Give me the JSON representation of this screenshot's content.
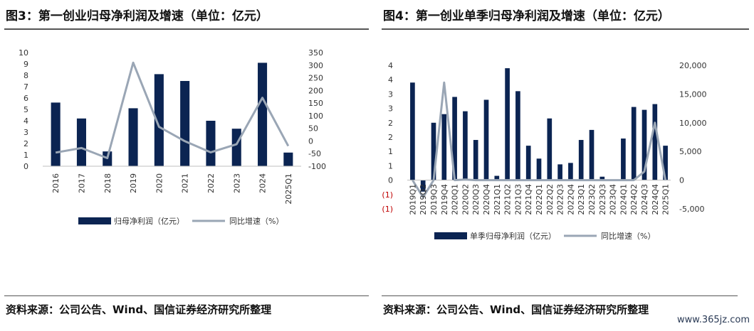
{
  "colors": {
    "bar": "#0b2452",
    "line": "#9aa6b5",
    "negative_label": "#c00000"
  },
  "left": {
    "title": "图3：第一创业归母净利润及增速（单位：亿元）",
    "source": "资料来源：公司公告、Wind、国信证券经济研究所整理",
    "legend": {
      "bar": "归母净利润（亿元）",
      "line": "同比增速（%）"
    },
    "left_ticks": [
      "0",
      "1",
      "2",
      "3",
      "4",
      "5",
      "6",
      "7",
      "8",
      "9",
      "10"
    ],
    "right_ticks": [
      "-100",
      "-50",
      "0",
      "50",
      "100",
      "150",
      "200",
      "250",
      "300",
      "350"
    ]
  },
  "right": {
    "title": "图4：第一创业单季归母净利润及增速（单位：亿元）",
    "source": "资料来源：公司公告、Wind、国信证券经济研究所整理",
    "legend": {
      "bar": "单季归母净利润（亿元）",
      "line": "同比增速（%）"
    },
    "left_ticks": [
      "(1)",
      "(1)",
      "0",
      "1",
      "1",
      "2",
      "2",
      "3",
      "3",
      "4",
      "4"
    ],
    "right_ticks": [
      "-5,000",
      "0",
      "5,000",
      "10,000",
      "15,000",
      "20,000"
    ]
  },
  "watermark": "www.365jz.com",
  "chart_data": [
    {
      "type": "bar",
      "categories": [
        "2016",
        "2017",
        "2018",
        "2019",
        "2020",
        "2021",
        "2022",
        "2023",
        "2024",
        "2025Q1"
      ],
      "series": [
        {
          "name": "归母净利润（亿元）",
          "axis": "left",
          "type": "bar",
          "values": [
            5.6,
            4.2,
            1.3,
            5.1,
            8.1,
            7.5,
            4.0,
            3.3,
            9.1,
            1.2
          ]
        },
        {
          "name": "同比增速（%）",
          "axis": "right",
          "type": "line",
          "values": [
            -46,
            -28,
            -68,
            310,
            56,
            -1,
            -45,
            -13,
            171,
            -20
          ]
        }
      ],
      "ylim_left": [
        0,
        10
      ],
      "ylim_right": [
        -100,
        350
      ],
      "legend_position": "bottom"
    },
    {
      "type": "bar",
      "categories": [
        "2019Q1",
        "2019Q2",
        "2019Q3",
        "2019Q4",
        "2020Q1",
        "2020Q2",
        "2020Q3",
        "2020Q4",
        "2021Q1",
        "2021Q2",
        "2021Q3",
        "2021Q4",
        "2022Q1",
        "2022Q2",
        "2022Q3",
        "2022Q4",
        "2023Q1",
        "2023Q2",
        "2023Q3",
        "2023Q4",
        "2024Q1",
        "2024Q2",
        "2024Q3",
        "2024Q4",
        "2025Q1"
      ],
      "series": [
        {
          "name": "单季归母净利润（亿元）",
          "axis": "left",
          "type": "bar",
          "values": [
            3.4,
            -0.4,
            2.0,
            2.3,
            2.9,
            2.4,
            1.4,
            2.8,
            0.15,
            3.9,
            3.1,
            1.2,
            0.75,
            2.15,
            0.55,
            0.6,
            1.4,
            1.75,
            0.12,
            0.02,
            1.45,
            2.55,
            2.45,
            2.65,
            1.2
          ]
        },
        {
          "name": "同比增速（%）",
          "axis": "right",
          "type": "line",
          "values": [
            0,
            -3000,
            0,
            17000,
            0,
            100,
            0,
            0,
            0,
            0,
            0,
            0,
            0,
            0,
            0,
            0,
            0,
            0,
            0,
            0,
            0,
            0,
            1500,
            10000,
            0
          ]
        }
      ],
      "ylim_left": [
        -1,
        4
      ],
      "ylim_right": [
        -5000,
        20000
      ],
      "legend_position": "bottom"
    }
  ]
}
